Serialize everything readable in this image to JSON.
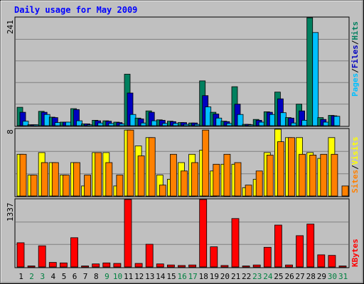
{
  "chart_data": [
    {
      "type": "bar",
      "title": "Daily usage for May 2009",
      "ylim": [
        0,
        241
      ],
      "ymax_label": "241",
      "categories": [
        "1",
        "2",
        "3",
        "4",
        "5",
        "6",
        "7",
        "8",
        "9",
        "10",
        "11",
        "12",
        "13",
        "14",
        "15",
        "16",
        "17",
        "18",
        "19",
        "20",
        "21",
        "22",
        "23",
        "24",
        "25",
        "26",
        "27",
        "28",
        "29",
        "30",
        "31"
      ],
      "series": [
        {
          "name": "Hits",
          "color": "#00805f",
          "values": [
            41,
            2,
            32,
            19,
            8,
            38,
            4,
            12,
            11,
            8,
            115,
            17,
            33,
            13,
            10,
            7,
            6,
            100,
            30,
            10,
            87,
            3,
            14,
            31,
            75,
            18,
            48,
            241,
            18,
            23,
            0
          ]
        },
        {
          "name": "Files",
          "color": "#0000c0",
          "values": [
            30,
            2,
            30,
            18,
            8,
            36,
            4,
            11,
            10,
            7,
            73,
            15,
            30,
            12,
            9,
            7,
            6,
            67,
            26,
            9,
            48,
            3,
            12,
            30,
            60,
            17,
            33,
            0,
            14,
            22,
            0
          ]
        },
        {
          "name": "Pages",
          "color": "#00c0ff",
          "values": [
            10,
            2,
            25,
            7,
            8,
            11,
            2,
            6,
            5,
            4,
            25,
            6,
            11,
            5,
            5,
            3,
            3,
            42,
            17,
            5,
            25,
            2,
            8,
            25,
            29,
            6,
            12,
            208,
            8,
            21,
            0
          ]
        }
      ],
      "legend": [
        "Pages",
        "/",
        "Files",
        "/",
        "Hits"
      ],
      "legend_colors": [
        "#00c0ff",
        "#000000",
        "#0000c0",
        "#000000",
        "#00805f"
      ]
    },
    {
      "type": "bar",
      "ylim": [
        0,
        8
      ],
      "ymax_label": "8",
      "categories": [
        "1",
        "2",
        "3",
        "4",
        "5",
        "6",
        "7",
        "8",
        "9",
        "10",
        "11",
        "12",
        "13",
        "14",
        "15",
        "16",
        "17",
        "18",
        "19",
        "20",
        "21",
        "22",
        "23",
        "24",
        "25",
        "26",
        "27",
        "28",
        "29",
        "30",
        "31"
      ],
      "series": [
        {
          "name": "Visits",
          "color": "#ffff00",
          "values": [
            5,
            2.5,
            5.2,
            4,
            2.5,
            4,
            1.2,
            5.2,
            5.2,
            1.2,
            7.9,
            6,
            7,
            2.5,
            2,
            4,
            5,
            5.5,
            3,
            3.8,
            3.8,
            1,
            2,
            5.2,
            8,
            7,
            7,
            5.2,
            4.5,
            7,
            0
          ]
        },
        {
          "name": "Sites",
          "color": "#ff8000",
          "values": [
            5,
            2.5,
            4,
            4,
            2.5,
            4,
            2.5,
            5.2,
            4,
            2.5,
            7.9,
            4.8,
            7,
            1.3,
            5,
            3,
            4,
            7.9,
            3.8,
            5,
            4,
            1.3,
            3,
            4.9,
            6.5,
            7,
            5,
            4.9,
            5,
            5,
            1.2
          ]
        }
      ],
      "legend": [
        "Sites",
        "/",
        "Visits"
      ],
      "legend_colors": [
        "#ff8000",
        "#000000",
        "#ffff00"
      ]
    },
    {
      "type": "bar",
      "ylim": [
        0,
        1337
      ],
      "ymax_label": "1337",
      "categories": [
        "1",
        "2",
        "3",
        "4",
        "5",
        "6",
        "7",
        "8",
        "9",
        "10",
        "11",
        "12",
        "13",
        "14",
        "15",
        "16",
        "17",
        "18",
        "19",
        "20",
        "21",
        "22",
        "23",
        "24",
        "25",
        "26",
        "27",
        "28",
        "29",
        "30",
        "31"
      ],
      "series": [
        {
          "name": "KBytes",
          "color": "#ff0000",
          "values": [
            480,
            20,
            420,
            90,
            80,
            580,
            20,
            60,
            80,
            70,
            1337,
            70,
            450,
            60,
            40,
            30,
            40,
            1337,
            400,
            30,
            960,
            20,
            40,
            390,
            830,
            40,
            620,
            850,
            240,
            230,
            20
          ]
        }
      ],
      "legend": [
        "KBytes"
      ],
      "legend_colors": [
        "#ff0000"
      ]
    }
  ],
  "weekend_color": "#008040",
  "weekend_days": [
    "2",
    "3",
    "9",
    "10",
    "16",
    "17",
    "23",
    "24",
    "30",
    "31"
  ]
}
